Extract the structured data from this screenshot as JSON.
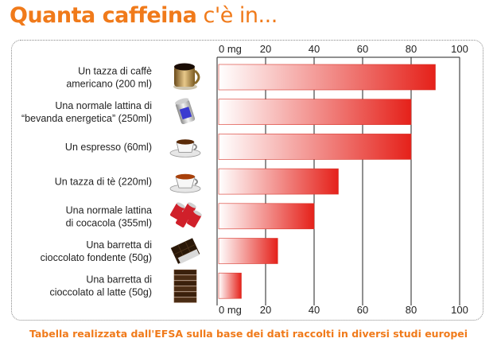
{
  "title": {
    "bold": "Quanta caffeina",
    "rest": "c'è in..."
  },
  "caption": "Tabella realizzata dall'EFSA sulla base dei dati raccolti in diversi studi europei",
  "colors": {
    "accent": "#f07a1a",
    "bar_dark": "#e5211a",
    "bar_light": "#ffffff",
    "bar_stroke": "#d8342a"
  },
  "chart_data": {
    "type": "bar",
    "orientation": "horizontal",
    "unit": "mg",
    "xlim": [
      0,
      100
    ],
    "ticks": [
      "0 mg",
      "20",
      "40",
      "60",
      "80",
      "100"
    ],
    "tick_values": [
      0,
      20,
      40,
      60,
      80,
      100
    ],
    "categories": [
      {
        "lines": [
          "Un tazza di caffè",
          "americano (200 ml)"
        ],
        "icon": "coffee-mug-icon",
        "value": 90
      },
      {
        "lines": [
          "Una normale lattina di",
          "“bevanda energetica” (250ml)"
        ],
        "icon": "energy-drink-can-icon",
        "value": 80
      },
      {
        "lines": [
          "Un espresso (60ml)"
        ],
        "icon": "espresso-cup-icon",
        "value": 80
      },
      {
        "lines": [
          "Un tazza di tè (220ml)"
        ],
        "icon": "tea-cup-icon",
        "value": 50
      },
      {
        "lines": [
          "Una normale lattina",
          "di cocacola (355ml)"
        ],
        "icon": "cola-cans-icon",
        "value": 40
      },
      {
        "lines": [
          "Una barretta di",
          "cioccolato fondente (50g)"
        ],
        "icon": "dark-chocolate-icon",
        "value": 25
      },
      {
        "lines": [
          "Una barretta di",
          "cioccolato al latte (50g)"
        ],
        "icon": "milk-chocolate-icon",
        "value": 10
      }
    ]
  }
}
